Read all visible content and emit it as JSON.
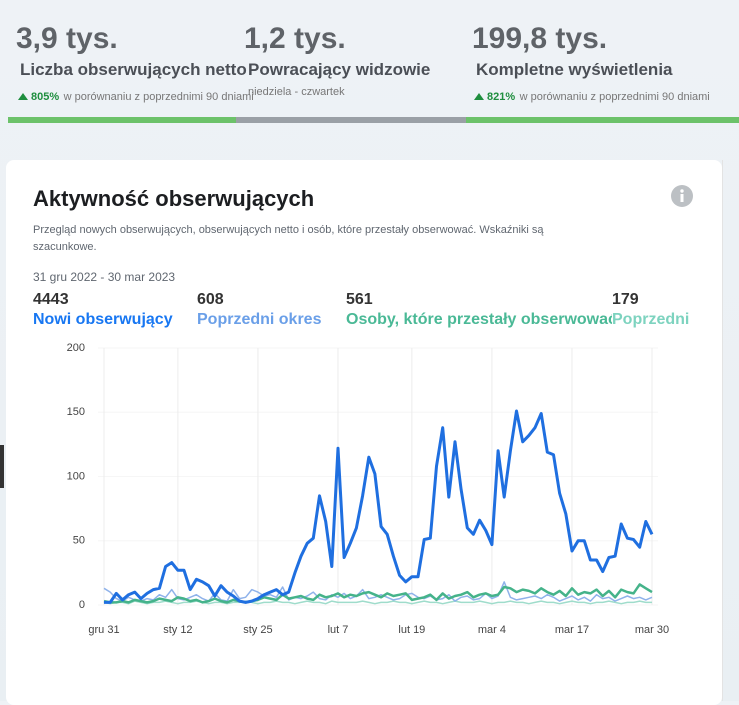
{
  "stats": [
    {
      "value": "3,9 tys.",
      "label": "Liczba obserwujących netto",
      "change": "805%",
      "note": "w porównaniu z poprzednimi 90 dniami"
    },
    {
      "value": "1,2 tys.",
      "label": "Powracający widzowie",
      "note": "niedziela - czwartek"
    },
    {
      "value": "199,8 tys.",
      "label": "Kompletne wyświetlenia",
      "change": "821%",
      "note": "w porównaniu z poprzednimi 90 dniami"
    }
  ],
  "card": {
    "title": "Aktywność obserwujących",
    "description": "Przegląd nowych obserwujących, obserwujących netto i osób, które przestały obserwować. Wskaźniki są szacunkowe.",
    "date_range": "31 gru 2022 - 30 mar 2023"
  },
  "chart_data": {
    "type": "line",
    "categories": [
      "gru 31",
      null,
      null,
      null,
      null,
      null,
      null,
      null,
      null,
      null,
      null,
      null,
      "sty 12",
      null,
      null,
      null,
      null,
      null,
      null,
      null,
      null,
      null,
      null,
      null,
      null,
      "sty 25",
      null,
      null,
      null,
      null,
      null,
      null,
      null,
      null,
      null,
      null,
      null,
      null,
      "lut 7",
      null,
      null,
      null,
      null,
      null,
      null,
      null,
      null,
      null,
      null,
      null,
      "lut 19",
      null,
      null,
      null,
      null,
      null,
      null,
      null,
      null,
      null,
      null,
      null,
      null,
      "mar 4",
      null,
      null,
      null,
      null,
      null,
      null,
      null,
      null,
      null,
      null,
      null,
      null,
      "mar 17",
      null,
      null,
      null,
      null,
      null,
      null,
      null,
      null,
      null,
      null,
      null,
      null,
      "mar 30"
    ],
    "ylim": [
      0,
      200
    ],
    "yticks": [
      0,
      50,
      100,
      150,
      200
    ],
    "grid": "x",
    "series": [
      {
        "name": "Nowi obserwujący",
        "total": 4443,
        "color": "#1f6fe0",
        "label_color": "#1877f2",
        "values": [
          2,
          2,
          9,
          4,
          8,
          10,
          5,
          9,
          12,
          13,
          30,
          33,
          27,
          27,
          12,
          20,
          18,
          15,
          7,
          15,
          10,
          7,
          3,
          2,
          3,
          5,
          8,
          10,
          12,
          8,
          10,
          25,
          38,
          48,
          52,
          85,
          65,
          30,
          122,
          37,
          48,
          60,
          85,
          115,
          102,
          61,
          55,
          38,
          23,
          18,
          22,
          22,
          51,
          52,
          108,
          138,
          84,
          127,
          90,
          60,
          55,
          66,
          58,
          47,
          120,
          84,
          120,
          151,
          127,
          132,
          138,
          149,
          119,
          117,
          87,
          71,
          42,
          50,
          50,
          35,
          35,
          26,
          37,
          38,
          63,
          52,
          51,
          45,
          65,
          55
        ]
      },
      {
        "name": "Poprzedni okres",
        "total": 608,
        "color": "#8fb2ea",
        "label_color": "#6a9fe8",
        "values": [
          13,
          10,
          5,
          3,
          6,
          4,
          3,
          5,
          4,
          8,
          6,
          12,
          5,
          4,
          6,
          8,
          5,
          3,
          9,
          4,
          3,
          12,
          5,
          6,
          12,
          10,
          7,
          8,
          6,
          14,
          4,
          6,
          5,
          7,
          10,
          5,
          4,
          8,
          6,
          9,
          5,
          7,
          12,
          5,
          6,
          8,
          6,
          4,
          5,
          8,
          9,
          6,
          5,
          7,
          4,
          5,
          8,
          3,
          6,
          7,
          4,
          5,
          9,
          5,
          7,
          18,
          6,
          4,
          5,
          6,
          7,
          5,
          8,
          6,
          3,
          5,
          7,
          4,
          6,
          3,
          8,
          5,
          6,
          3,
          5,
          7,
          5,
          6,
          4,
          6
        ]
      },
      {
        "name": "Osoby, które przestały obserwować",
        "total": 561,
        "color": "#45b38a",
        "label_color": "#4ab996",
        "values": [
          3,
          2,
          2,
          3,
          2,
          4,
          3,
          2,
          3,
          5,
          4,
          3,
          6,
          5,
          3,
          4,
          2,
          3,
          5,
          3,
          2,
          4,
          3,
          2,
          3,
          4,
          6,
          5,
          4,
          8,
          5,
          6,
          7,
          5,
          4,
          8,
          6,
          7,
          9,
          6,
          8,
          7,
          9,
          10,
          8,
          6,
          9,
          7,
          8,
          9,
          4,
          5,
          6,
          8,
          4,
          9,
          5,
          7,
          8,
          10,
          6,
          8,
          9,
          7,
          8,
          14,
          13,
          10,
          12,
          11,
          9,
          13,
          10,
          8,
          11,
          7,
          13,
          8,
          10,
          9,
          12,
          7,
          11,
          6,
          12,
          10,
          9,
          16,
          13,
          10
        ]
      },
      {
        "name": "Poprzedni",
        "total": 179,
        "color": "#9fdccb",
        "label_color": "#7dd3bf",
        "values": [
          2,
          1,
          2,
          2,
          1,
          3,
          2,
          1,
          2,
          2,
          3,
          2,
          1,
          2,
          2,
          3,
          2,
          1,
          2,
          2,
          1,
          2,
          2,
          3,
          2,
          1,
          2,
          2,
          3,
          2,
          2,
          1,
          2,
          3,
          2,
          2,
          1,
          3,
          2,
          2,
          2,
          2,
          3,
          2,
          1,
          2,
          2,
          3,
          2,
          2,
          1,
          2,
          3,
          2,
          2,
          1,
          2,
          3,
          2,
          2,
          2,
          3,
          2,
          1,
          2,
          2,
          3,
          2,
          2,
          1,
          2,
          3,
          2,
          2,
          1,
          2,
          3,
          2,
          2,
          1,
          2,
          2,
          3,
          2,
          1,
          2,
          2,
          3,
          2,
          2
        ]
      }
    ]
  }
}
